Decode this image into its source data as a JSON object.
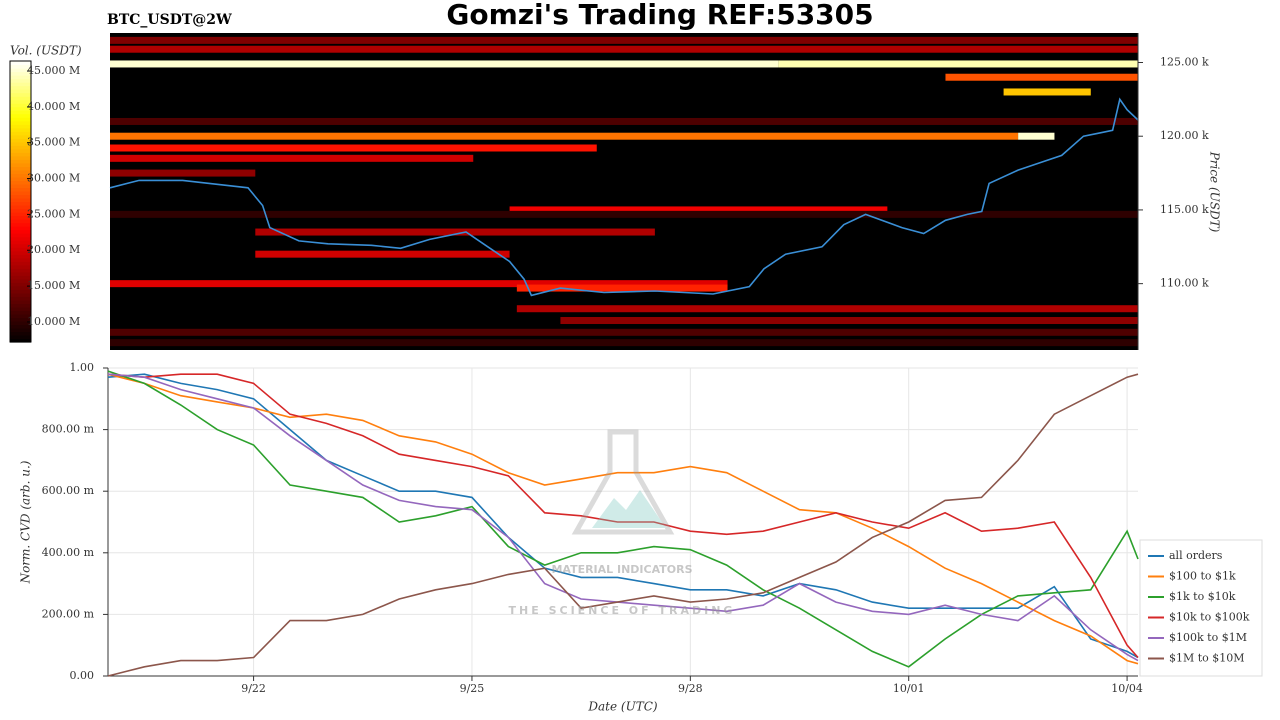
{
  "chart_data": [
    {
      "type": "heatmap",
      "title": "Gomzi's Trading REF:53305",
      "subtitle": "BTC_USDT@2W",
      "ylabel": "Price (USDT)",
      "xlim": [
        20,
        34.15
      ],
      "ylim": [
        105500,
        127000
      ],
      "yticks": [
        {
          "value": 110000,
          "label": "110.00 k"
        },
        {
          "value": 115000,
          "label": "115.00 k"
        },
        {
          "value": 120000,
          "label": "120.00 k"
        },
        {
          "value": 125000,
          "label": "125.00 k"
        }
      ],
      "colorbar": {
        "label": "Vol. (USDT)",
        "lim": [
          7200000,
          46400000
        ],
        "ticks": [
          {
            "value": 10000000,
            "label": "10.000 M"
          },
          {
            "value": 15000000,
            "label": "15.000 M"
          },
          {
            "value": 20000000,
            "label": "20.000 M"
          },
          {
            "value": 25000000,
            "label": "25.000 M"
          },
          {
            "value": 30000000,
            "label": "30.000 M"
          },
          {
            "value": 35000000,
            "label": "35.000 M"
          },
          {
            "value": 40000000,
            "label": "40.000 M"
          },
          {
            "value": 45000000,
            "label": "45.000 M"
          }
        ]
      },
      "levels": {
        "price": [
          126500,
          125900,
          124900,
          124900,
          124000,
          123000,
          121000,
          120000,
          120000,
          119200,
          118500,
          117500,
          115000,
          114700,
          113500,
          112000,
          110000,
          109700,
          108300,
          107500,
          106700,
          106000
        ],
        "start": [
          20,
          20,
          20,
          29.2,
          31.5,
          32.3,
          20,
          20,
          32.5,
          20,
          20,
          20,
          25.5,
          20,
          22,
          22,
          20,
          25.6,
          25.6,
          26.2,
          20,
          20
        ],
        "end": [
          34.15,
          34.15,
          29.2,
          34.15,
          34.15,
          33.5,
          34.15,
          32.5,
          33,
          26.7,
          25,
          22,
          30.7,
          34.15,
          27.5,
          25.5,
          28.5,
          28.5,
          34.15,
          34.15,
          34.15,
          34.15
        ],
        "volume": [
          15000000,
          18000000,
          45000000,
          44000000,
          28000000,
          35000000,
          12000000,
          30000000,
          45000000,
          24000000,
          20000000,
          16000000,
          22000000,
          10000000,
          18000000,
          20000000,
          21000000,
          25000000,
          18000000,
          16000000,
          12000000,
          10000000
        ]
      },
      "price_line": {
        "color": "#3a8fd6",
        "x": [
          20,
          20.4,
          21,
          21.9,
          22.1,
          22.2,
          22.6,
          23,
          23.6,
          24,
          24.4,
          24.9,
          25.2,
          25.5,
          25.7,
          25.8,
          26.2,
          26.8,
          27.5,
          28.3,
          28.8,
          29,
          29.3,
          29.8,
          30.1,
          30.4,
          30.9,
          31.2,
          31.5,
          31.8,
          32,
          32.1,
          32.5,
          32.8,
          33.1,
          33.4,
          33.6,
          33.8,
          33.9,
          34,
          34.15
        ],
        "values": [
          116500,
          117000,
          117000,
          116500,
          115300,
          113800,
          112900,
          112700,
          112600,
          112400,
          113000,
          113500,
          112500,
          111500,
          110300,
          109200,
          109700,
          109400,
          109500,
          109300,
          109800,
          111000,
          112000,
          112500,
          114000,
          114700,
          113800,
          113400,
          114300,
          114700,
          114900,
          116800,
          117700,
          118200,
          118700,
          120000,
          120200,
          120400,
          122500,
          121800,
          121100
        ]
      }
    },
    {
      "type": "line",
      "xlabel": "Date (UTC)",
      "ylabel": "Norm. CVD (arb. u.)",
      "grid": true,
      "legend": "right",
      "xlim": [
        20,
        34.15
      ],
      "ylim": [
        0,
        1
      ],
      "xticks": [
        {
          "value": 22,
          "label": "9/22"
        },
        {
          "value": 25,
          "label": "9/25"
        },
        {
          "value": 28,
          "label": "9/28"
        },
        {
          "value": 31,
          "label": "10/01"
        },
        {
          "value": 34,
          "label": "10/04"
        }
      ],
      "yticks": [
        {
          "value": 0,
          "label": "0.00"
        },
        {
          "value": 0.2,
          "label": "200.00 m"
        },
        {
          "value": 0.4,
          "label": "400.00 m"
        },
        {
          "value": 0.6,
          "label": "600.00 m"
        },
        {
          "value": 0.8,
          "label": "800.00 m"
        },
        {
          "value": 1,
          "label": "1.00"
        }
      ],
      "x": [
        20,
        20.5,
        21,
        21.5,
        22,
        22.5,
        23,
        23.5,
        24,
        24.5,
        25,
        25.5,
        26,
        26.5,
        27,
        27.5,
        28,
        28.5,
        29,
        29.5,
        30,
        30.5,
        31,
        31.5,
        32,
        32.5,
        33,
        33.5,
        34,
        34.15
      ],
      "series": [
        {
          "name": "all orders",
          "color": "#1f77b4",
          "values": [
            0.97,
            0.98,
            0.95,
            0.93,
            0.9,
            0.8,
            0.7,
            0.65,
            0.6,
            0.6,
            0.58,
            0.45,
            0.35,
            0.32,
            0.32,
            0.3,
            0.28,
            0.28,
            0.26,
            0.3,
            0.28,
            0.24,
            0.22,
            0.22,
            0.22,
            0.22,
            0.29,
            0.12,
            0.08,
            0.06
          ]
        },
        {
          "name": "$100 to $1k",
          "color": "#ff7f0e",
          "values": [
            0.98,
            0.95,
            0.91,
            0.89,
            0.87,
            0.84,
            0.85,
            0.83,
            0.78,
            0.76,
            0.72,
            0.66,
            0.62,
            0.64,
            0.66,
            0.66,
            0.68,
            0.66,
            0.6,
            0.54,
            0.53,
            0.48,
            0.42,
            0.35,
            0.3,
            0.24,
            0.18,
            0.13,
            0.05,
            0.04
          ]
        },
        {
          "name": "$1k to $10k",
          "color": "#2ca02c",
          "values": [
            0.99,
            0.95,
            0.88,
            0.8,
            0.75,
            0.62,
            0.6,
            0.58,
            0.5,
            0.52,
            0.55,
            0.42,
            0.36,
            0.4,
            0.4,
            0.42,
            0.41,
            0.36,
            0.28,
            0.22,
            0.15,
            0.08,
            0.03,
            0.12,
            0.2,
            0.26,
            0.27,
            0.28,
            0.47,
            0.38
          ]
        },
        {
          "name": "$10k to $100k",
          "color": "#d62728",
          "values": [
            0.98,
            0.97,
            0.98,
            0.98,
            0.95,
            0.85,
            0.82,
            0.78,
            0.72,
            0.7,
            0.68,
            0.65,
            0.53,
            0.52,
            0.5,
            0.5,
            0.47,
            0.46,
            0.47,
            0.5,
            0.53,
            0.5,
            0.48,
            0.53,
            0.47,
            0.48,
            0.5,
            0.32,
            0.1,
            0.06
          ]
        },
        {
          "name": "$100k to $1M",
          "color": "#9467bd",
          "values": [
            0.98,
            0.97,
            0.93,
            0.9,
            0.87,
            0.78,
            0.7,
            0.62,
            0.57,
            0.55,
            0.54,
            0.45,
            0.3,
            0.25,
            0.24,
            0.23,
            0.22,
            0.21,
            0.23,
            0.3,
            0.24,
            0.21,
            0.2,
            0.23,
            0.2,
            0.18,
            0.26,
            0.15,
            0.07,
            0.05
          ]
        },
        {
          "name": "$1M to $10M",
          "color": "#8c564b",
          "values": [
            0.0,
            0.03,
            0.05,
            0.05,
            0.06,
            0.18,
            0.18,
            0.2,
            0.25,
            0.28,
            0.3,
            0.33,
            0.35,
            0.22,
            0.24,
            0.26,
            0.24,
            0.25,
            0.27,
            0.32,
            0.37,
            0.45,
            0.5,
            0.57,
            0.58,
            0.7,
            0.85,
            0.91,
            0.97,
            0.98
          ]
        }
      ]
    }
  ],
  "watermark": [
    "MATERIAL INDICATORS",
    "THE SCIENCE OF TRADING"
  ]
}
